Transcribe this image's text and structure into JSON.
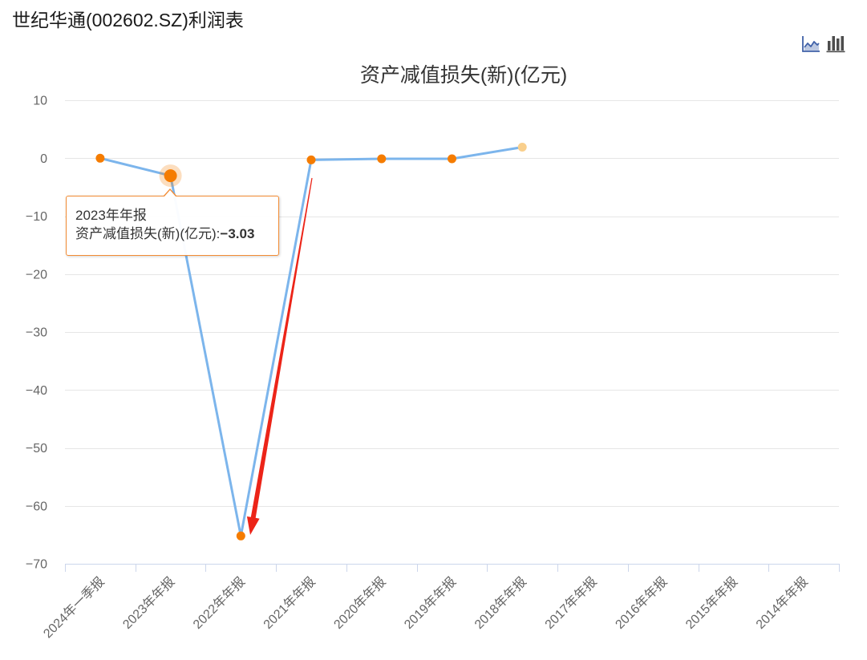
{
  "page": {
    "title": "世纪华通(002602.SZ)利润表"
  },
  "toolbar": {
    "buttons": [
      {
        "icon": "line-chart-icon",
        "color": "#3f60a8"
      },
      {
        "icon": "bar-chart-icon",
        "color": "#4d4d4d"
      }
    ]
  },
  "chart_data": {
    "type": "line",
    "title": "资产减值损失(新)(亿元)",
    "categories": [
      "2024年一季报",
      "2023年年报",
      "2022年年报",
      "2021年年报",
      "2020年年报",
      "2019年年报",
      "2018年年报",
      "2017年年报",
      "2016年年报",
      "2015年年报",
      "2014年年报"
    ],
    "series": [
      {
        "name": "资产减值损失(新)(亿元)",
        "values": [
          0.0,
          -3.03,
          -65.2,
          -0.3,
          -0.1,
          -0.1,
          1.9,
          null,
          null,
          null,
          null
        ],
        "marker_colors": [
          "#f57c00",
          "#f57c00",
          "#f57c00",
          "#f57c00",
          "#f57c00",
          "#f57c00",
          "#f9cf8c",
          null,
          null,
          null,
          null
        ]
      }
    ],
    "ylim": [
      -70,
      10
    ],
    "yticks": [
      10,
      0,
      -10,
      -20,
      -30,
      -40,
      -50,
      -60,
      -70
    ],
    "ytick_labels": [
      "10",
      "0",
      "−10",
      "−20",
      "−30",
      "−40",
      "−50",
      "−60",
      "−70"
    ],
    "grid": true,
    "colors": {
      "line": "#7cb5ec",
      "grid": "#e6e6e6",
      "axis": "#ccd6eb",
      "label": "#666666",
      "title": "#333333"
    }
  },
  "tooltip": {
    "category": "2023年年报",
    "separator": ":",
    "value": "−3.03",
    "border_color": "#f28b33"
  },
  "annotation_arrow": {
    "color": "#ec2418"
  }
}
